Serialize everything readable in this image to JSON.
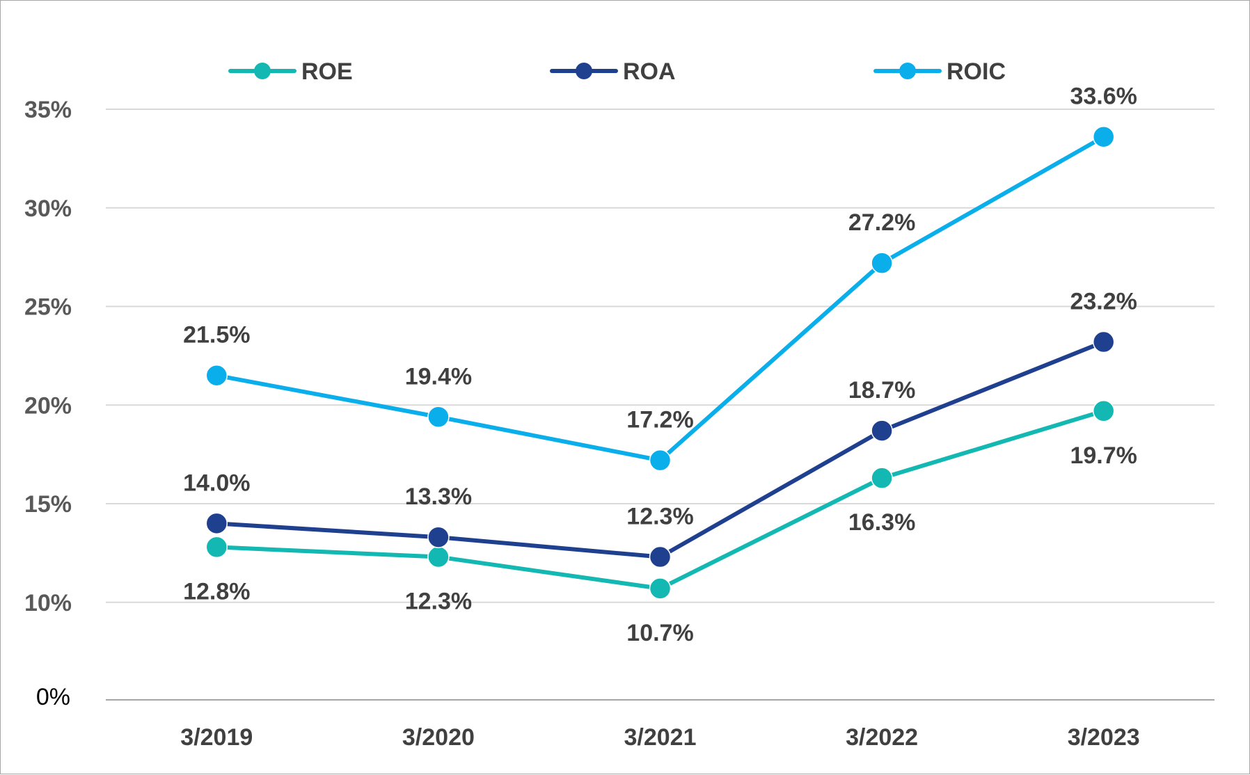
{
  "chart_data": {
    "type": "line",
    "title": "",
    "xlabel": "",
    "ylabel": "",
    "categories": [
      "3/2019",
      "3/2020",
      "3/2021",
      "3/2022",
      "3/2023"
    ],
    "ylim": [
      0,
      35
    ],
    "y_axis_scale": "broken: 0% baseline, gridlines from 10% to 35%",
    "yticks": [
      {
        "value": 0,
        "label": "0%"
      },
      {
        "value": 10,
        "label": "10%"
      },
      {
        "value": 15,
        "label": "15%"
      },
      {
        "value": 20,
        "label": "20%"
      },
      {
        "value": 25,
        "label": "25%"
      },
      {
        "value": 30,
        "label": "30%"
      },
      {
        "value": 35,
        "label": "35%"
      }
    ],
    "grid": true,
    "legend_position": "top",
    "series": [
      {
        "name": "ROE",
        "color": "#12b8b1",
        "values": [
          12.8,
          12.3,
          10.7,
          16.3,
          19.7
        ],
        "labels": [
          "12.8%",
          "12.3%",
          "10.7%",
          "16.3%",
          "19.7%"
        ],
        "label_side": "below"
      },
      {
        "name": "ROA",
        "color": "#1f3f8f",
        "values": [
          14.0,
          13.3,
          12.3,
          18.7,
          23.2
        ],
        "labels": [
          "14.0%",
          "13.3%",
          "12.3%",
          "18.7%",
          "23.2%"
        ],
        "label_side": "above"
      },
      {
        "name": "ROIC",
        "color": "#0aaeea",
        "values": [
          21.5,
          19.4,
          17.2,
          27.2,
          33.6
        ],
        "labels": [
          "21.5%",
          "19.4%",
          "17.2%",
          "27.2%",
          "33.6%"
        ],
        "label_side": "above"
      }
    ]
  }
}
